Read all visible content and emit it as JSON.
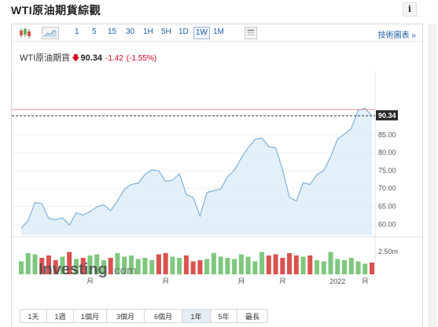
{
  "header": {
    "title": "WTI原油期貨綜觀",
    "info_icon": "i"
  },
  "toolbar": {
    "icons": [
      "candlestick-icon",
      "area-chart-icon"
    ],
    "intervals": [
      "1",
      "5",
      "15",
      "30",
      "1H",
      "5H",
      "1D",
      "1W",
      "1M"
    ],
    "active_interval": "1W",
    "settings_icon": "settings-panel-icon",
    "advanced_link": "技術圖表 »"
  },
  "quote": {
    "symbol": "WTI原油期貨",
    "direction_icon": "down-arrow-icon",
    "price": "90.34",
    "change": "-1.42",
    "change_pct": "(-1.55%)",
    "down_color": "#d0021b"
  },
  "watermark": {
    "brand": "Investing",
    "suffix": ".com"
  },
  "chart_data": {
    "type": "line",
    "style": "area",
    "title": "",
    "series": [
      {
        "values": [
          58.9,
          61.0,
          66.1,
          65.8,
          61.6,
          61.3,
          61.8,
          59.8,
          63.2,
          62.6,
          63.5,
          64.9,
          65.4,
          63.8,
          66.5,
          69.8,
          71.1,
          71.5,
          73.9,
          75.2,
          74.9,
          72.0,
          72.3,
          74.1,
          68.3,
          67.5,
          62.3,
          68.9,
          69.4,
          69.8,
          73.3,
          75.1,
          78.5,
          81.4,
          83.7,
          84.1,
          81.7,
          81.3,
          75.3,
          67.5,
          66.5,
          71.6,
          71.1,
          73.9,
          75.0,
          78.9,
          83.8,
          85.1,
          86.8,
          91.8,
          92.4,
          90.3
        ]
      }
    ],
    "last_price_label": "90.34",
    "reference_line": 92.0,
    "ylim": [
      57,
      100
    ],
    "yticks": [
      60.0,
      65.0,
      70.0,
      75.0,
      80.0,
      85.0,
      90.34
    ],
    "ytick_labels": [
      "60.00",
      "65.00",
      "70.00",
      "75.00",
      "80.00",
      "85.00",
      "90.34"
    ],
    "volume": {
      "label": "2.50m",
      "values": [
        0.55,
        0.9,
        0.85,
        0.7,
        0.8,
        0.6,
        0.75,
        0.95,
        0.65,
        0.7,
        0.8,
        0.85,
        0.6,
        0.7,
        0.9,
        0.75,
        0.8,
        0.65,
        0.7,
        0.6,
        0.85,
        0.9,
        0.75,
        0.7,
        0.8,
        0.55,
        0.6,
        0.65,
        0.9,
        0.75,
        0.7,
        0.65,
        0.85,
        0.75,
        0.55,
        0.95,
        0.8,
        0.85,
        0.7,
        0.9,
        0.8,
        0.75,
        0.8,
        0.6,
        0.55,
        0.95,
        0.65,
        0.6,
        0.7,
        0.55,
        0.45,
        0.5
      ],
      "up_color": "#7ec87e",
      "down_color": "#d9534f",
      "directions": [
        "u",
        "u",
        "u",
        "d",
        "d",
        "d",
        "u",
        "d",
        "u",
        "d",
        "u",
        "u",
        "u",
        "d",
        "u",
        "u",
        "u",
        "u",
        "u",
        "u",
        "d",
        "d",
        "u",
        "u",
        "d",
        "d",
        "d",
        "u",
        "u",
        "u",
        "u",
        "u",
        "u",
        "u",
        "u",
        "u",
        "d",
        "d",
        "d",
        "d",
        "d",
        "u",
        "d",
        "u",
        "u",
        "u",
        "u",
        "u",
        "u",
        "u",
        "u",
        "d"
      ]
    },
    "x_labels": [
      {
        "label": "月",
        "index": 10
      },
      {
        "label": "月",
        "index": 21
      },
      {
        "label": "月",
        "index": 32
      },
      {
        "label": "月",
        "index": 38
      },
      {
        "label": "2022",
        "index": 46
      },
      {
        "label": "月",
        "index": 50
      }
    ],
    "line_color": "#7fb3de",
    "fill_color": "#dcebf7",
    "grid": true
  },
  "ranges": {
    "items": [
      "1天",
      "1週",
      "1個月",
      "3個月",
      "6個月",
      "1年",
      "5年",
      "最長"
    ],
    "active": "1年"
  }
}
